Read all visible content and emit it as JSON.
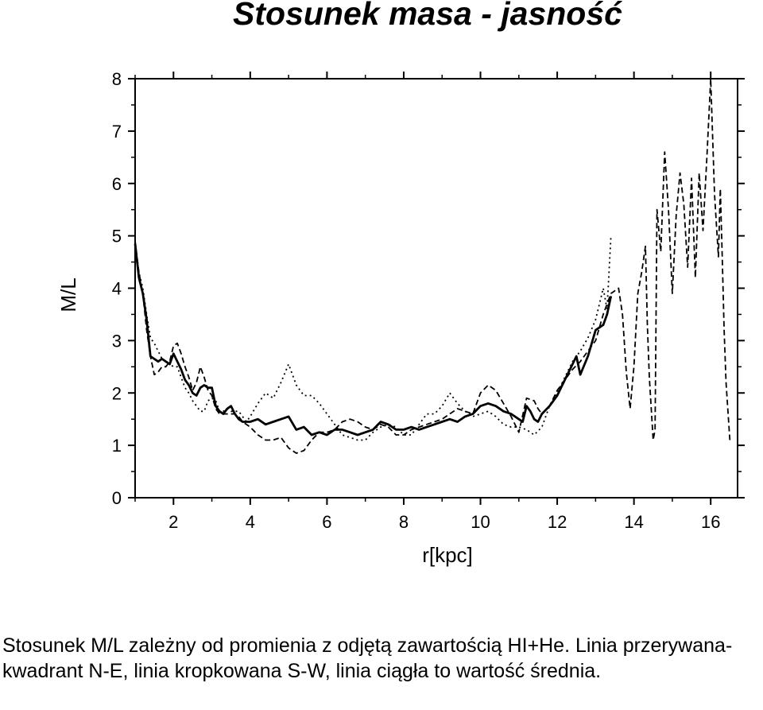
{
  "page": {
    "title": "Stosunek masa - jasność",
    "caption": "Stosunek M/L zależny od promienia z odjętą zawartością HI+He. Linia przerywana-kwadrant N-E, linia kropkowana S-W, linia ciągła to wartość średnia."
  },
  "chart_data": {
    "type": "line",
    "title": "Stosunek masa - jasność",
    "xlabel": "r[kpc]",
    "ylabel": "M/L",
    "xlim": [
      1,
      16.7
    ],
    "ylim": [
      0,
      8
    ],
    "xticks": [
      2,
      4,
      6,
      8,
      10,
      12,
      14,
      16
    ],
    "yticks": [
      0,
      1,
      2,
      3,
      4,
      5,
      6,
      7,
      8
    ],
    "grid": false,
    "legend": "none",
    "series": [
      {
        "style": "dashed",
        "x": [
          1.0,
          1.1,
          1.2,
          1.3,
          1.4,
          1.5,
          1.6,
          1.7,
          1.8,
          1.9,
          2.0,
          2.1,
          2.2,
          2.3,
          2.4,
          2.5,
          2.6,
          2.7,
          2.8,
          2.9,
          3.0,
          3.1,
          3.2,
          3.3,
          3.4,
          3.5,
          3.6,
          3.7,
          3.8,
          3.9,
          4.0,
          4.2,
          4.4,
          4.6,
          4.8,
          5.0,
          5.2,
          5.4,
          5.6,
          5.8,
          6.0,
          6.2,
          6.4,
          6.6,
          6.8,
          7.0,
          7.2,
          7.4,
          7.6,
          7.8,
          8.0,
          8.2,
          8.4,
          8.6,
          8.8,
          9.0,
          9.2,
          9.4,
          9.6,
          9.8,
          10.0,
          10.2,
          10.4,
          10.6,
          10.8,
          11.0,
          11.2,
          11.4,
          11.5,
          11.6,
          11.8,
          12.0,
          12.2,
          12.4,
          12.6,
          12.8,
          13.0,
          13.2,
          13.4,
          13.6,
          13.7,
          13.8,
          13.9,
          14.0,
          14.1,
          14.2,
          14.3,
          14.35,
          14.4,
          14.5,
          14.55,
          14.6,
          14.7,
          14.8,
          14.9,
          15.0,
          15.1,
          15.2,
          15.3,
          15.4,
          15.5,
          15.6,
          15.7,
          15.8,
          15.9,
          16.0,
          16.1,
          16.2,
          16.25,
          16.3,
          16.35,
          16.4,
          16.5
        ],
        "y": [
          4.9,
          4.3,
          3.9,
          3.2,
          2.7,
          2.35,
          2.4,
          2.5,
          2.5,
          2.6,
          2.9,
          2.95,
          2.75,
          2.5,
          2.3,
          2.05,
          2.2,
          2.5,
          2.3,
          2.05,
          1.95,
          1.7,
          1.6,
          1.6,
          1.6,
          1.6,
          1.6,
          1.55,
          1.45,
          1.4,
          1.35,
          1.2,
          1.1,
          1.1,
          1.15,
          0.95,
          0.85,
          0.9,
          1.1,
          1.25,
          1.25,
          1.3,
          1.45,
          1.5,
          1.45,
          1.35,
          1.3,
          1.4,
          1.35,
          1.2,
          1.2,
          1.3,
          1.35,
          1.4,
          1.45,
          1.5,
          1.6,
          1.7,
          1.65,
          1.6,
          2.0,
          2.15,
          2.05,
          1.8,
          1.55,
          1.25,
          1.9,
          1.85,
          1.7,
          1.6,
          1.75,
          2.05,
          2.25,
          2.45,
          2.6,
          2.8,
          3.0,
          3.5,
          3.9,
          4.0,
          3.5,
          2.4,
          1.7,
          2.5,
          3.9,
          4.3,
          4.8,
          3.3,
          2.3,
          1.1,
          1.3,
          5.5,
          4.7,
          6.6,
          5.5,
          3.9,
          5.4,
          6.2,
          5.6,
          4.4,
          6.1,
          4.2,
          6.2,
          5.1,
          6.5,
          8.0,
          5.8,
          4.6,
          5.9,
          4.6,
          3.2,
          2.2,
          1.1
        ]
      },
      {
        "style": "dotted",
        "x": [
          1.0,
          1.1,
          1.2,
          1.3,
          1.4,
          1.5,
          1.6,
          1.7,
          1.8,
          1.9,
          2.0,
          2.1,
          2.2,
          2.3,
          2.4,
          2.5,
          2.6,
          2.7,
          2.8,
          2.9,
          3.0,
          3.1,
          3.2,
          3.3,
          3.4,
          3.5,
          3.6,
          3.7,
          3.8,
          3.9,
          4.0,
          4.2,
          4.4,
          4.6,
          4.8,
          5.0,
          5.2,
          5.4,
          5.6,
          5.8,
          6.0,
          6.2,
          6.4,
          6.6,
          6.8,
          7.0,
          7.2,
          7.4,
          7.6,
          7.8,
          8.0,
          8.2,
          8.4,
          8.6,
          8.8,
          9.0,
          9.2,
          9.4,
          9.6,
          9.8,
          10.0,
          10.2,
          10.4,
          10.6,
          10.8,
          11.0,
          11.2,
          11.4,
          11.6,
          11.8,
          12.0,
          12.2,
          12.4,
          12.6,
          12.8,
          13.0,
          13.2,
          13.3,
          13.4
        ],
        "y": [
          4.8,
          4.3,
          4.0,
          3.5,
          3.05,
          2.95,
          2.8,
          2.65,
          2.6,
          2.55,
          2.5,
          2.5,
          2.3,
          2.1,
          2.0,
          1.85,
          1.75,
          1.65,
          1.65,
          1.85,
          1.9,
          1.85,
          1.65,
          1.65,
          1.7,
          1.65,
          1.65,
          1.65,
          1.55,
          1.45,
          1.55,
          1.8,
          2.0,
          1.9,
          2.2,
          2.55,
          2.15,
          1.95,
          1.95,
          1.8,
          1.6,
          1.4,
          1.2,
          1.15,
          1.1,
          1.1,
          1.25,
          1.35,
          1.4,
          1.35,
          1.2,
          1.2,
          1.4,
          1.6,
          1.6,
          1.75,
          2.0,
          1.8,
          1.65,
          1.55,
          1.6,
          1.65,
          1.55,
          1.4,
          1.35,
          1.35,
          1.3,
          1.2,
          1.35,
          1.75,
          2.0,
          2.3,
          2.6,
          2.8,
          3.05,
          3.4,
          4.0,
          3.6,
          5.0
        ]
      },
      {
        "style": "solid",
        "x": [
          1.0,
          1.1,
          1.2,
          1.3,
          1.4,
          1.5,
          1.6,
          1.7,
          1.8,
          1.9,
          2.0,
          2.1,
          2.2,
          2.3,
          2.4,
          2.5,
          2.6,
          2.7,
          2.8,
          2.9,
          3.0,
          3.1,
          3.2,
          3.3,
          3.4,
          3.5,
          3.6,
          3.7,
          3.8,
          3.9,
          4.0,
          4.2,
          4.4,
          4.6,
          4.8,
          5.0,
          5.2,
          5.4,
          5.6,
          5.8,
          6.0,
          6.2,
          6.4,
          6.6,
          6.8,
          7.0,
          7.2,
          7.4,
          7.6,
          7.8,
          8.0,
          8.2,
          8.4,
          8.6,
          8.8,
          9.0,
          9.2,
          9.4,
          9.6,
          9.8,
          10.0,
          10.2,
          10.4,
          10.6,
          10.8,
          11.0,
          11.1,
          11.2,
          11.3,
          11.4,
          11.5,
          11.6,
          11.8,
          12.0,
          12.2,
          12.4,
          12.5,
          12.6,
          12.8,
          13.0,
          13.2,
          13.3,
          13.4
        ],
        "y": [
          4.85,
          4.2,
          3.9,
          3.4,
          2.7,
          2.65,
          2.6,
          2.65,
          2.6,
          2.55,
          2.75,
          2.6,
          2.45,
          2.25,
          2.15,
          2.0,
          1.95,
          2.1,
          2.15,
          2.1,
          2.1,
          1.75,
          1.65,
          1.6,
          1.7,
          1.75,
          1.6,
          1.5,
          1.45,
          1.45,
          1.45,
          1.5,
          1.4,
          1.45,
          1.5,
          1.55,
          1.3,
          1.35,
          1.2,
          1.25,
          1.2,
          1.3,
          1.3,
          1.25,
          1.2,
          1.25,
          1.3,
          1.45,
          1.4,
          1.3,
          1.3,
          1.35,
          1.3,
          1.35,
          1.4,
          1.45,
          1.5,
          1.45,
          1.55,
          1.6,
          1.75,
          1.8,
          1.75,
          1.65,
          1.6,
          1.5,
          1.45,
          1.75,
          1.65,
          1.5,
          1.45,
          1.6,
          1.75,
          1.95,
          2.25,
          2.55,
          2.7,
          2.35,
          2.7,
          3.2,
          3.3,
          3.5,
          3.85
        ]
      }
    ]
  }
}
